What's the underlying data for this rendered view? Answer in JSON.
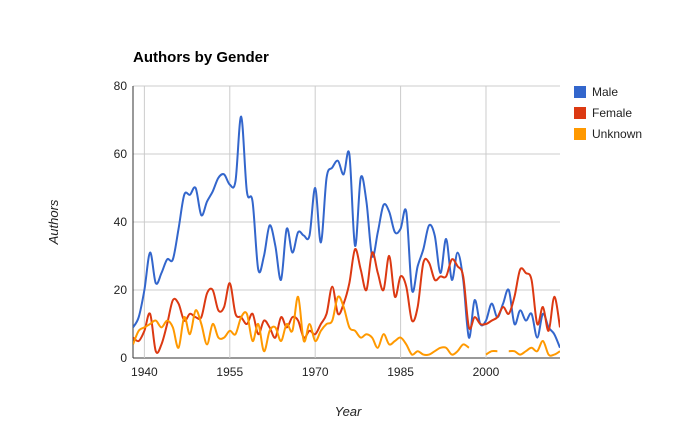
{
  "chart_data": {
    "type": "line",
    "title": "Authors by Gender",
    "xlabel": "Year",
    "ylabel": "Authors",
    "xlim": [
      1938,
      2013
    ],
    "ylim": [
      0,
      80
    ],
    "x_ticks": [
      1940,
      1955,
      1970,
      1985,
      2000
    ],
    "y_ticks": [
      0,
      20,
      40,
      60,
      80
    ],
    "grid": "vertical lines at x ticks",
    "legend_position": "right",
    "series": [
      {
        "name": "Male",
        "color": "#3366cc",
        "points": [
          [
            1938,
            9
          ],
          [
            1939,
            12
          ],
          [
            1940,
            20
          ],
          [
            1941,
            31
          ],
          [
            1942,
            22
          ],
          [
            1943,
            25
          ],
          [
            1944,
            29
          ],
          [
            1945,
            29
          ],
          [
            1946,
            38
          ],
          [
            1947,
            48
          ],
          [
            1948,
            48
          ],
          [
            1949,
            50
          ],
          [
            1950,
            42
          ],
          [
            1951,
            46
          ],
          [
            1952,
            49
          ],
          [
            1953,
            53
          ],
          [
            1954,
            54
          ],
          [
            1955,
            51
          ],
          [
            1956,
            52
          ],
          [
            1957,
            71
          ],
          [
            1958,
            49
          ],
          [
            1959,
            46
          ],
          [
            1960,
            26
          ],
          [
            1961,
            30
          ],
          [
            1962,
            39
          ],
          [
            1963,
            33
          ],
          [
            1964,
            23
          ],
          [
            1965,
            38
          ],
          [
            1966,
            31
          ],
          [
            1967,
            37
          ],
          [
            1968,
            36
          ],
          [
            1969,
            36
          ],
          [
            1970,
            50
          ],
          [
            1971,
            34
          ],
          [
            1972,
            53
          ],
          [
            1973,
            56
          ],
          [
            1974,
            58
          ],
          [
            1975,
            54
          ],
          [
            1976,
            60
          ],
          [
            1977,
            33
          ],
          [
            1978,
            53
          ],
          [
            1979,
            46
          ],
          [
            1980,
            30
          ],
          [
            1981,
            37
          ],
          [
            1982,
            45
          ],
          [
            1983,
            43
          ],
          [
            1984,
            37
          ],
          [
            1985,
            38
          ],
          [
            1986,
            43
          ],
          [
            1987,
            20
          ],
          [
            1988,
            27
          ],
          [
            1989,
            32
          ],
          [
            1990,
            39
          ],
          [
            1991,
            36
          ],
          [
            1992,
            25
          ],
          [
            1993,
            35
          ],
          [
            1994,
            23
          ],
          [
            1995,
            31
          ],
          [
            1996,
            23
          ],
          [
            1997,
            6
          ],
          [
            1998,
            17
          ],
          [
            1999,
            10
          ],
          [
            2000,
            11
          ],
          [
            2001,
            16
          ],
          [
            2002,
            12
          ],
          [
            2003,
            16
          ],
          [
            2004,
            20
          ],
          [
            2005,
            10
          ],
          [
            2006,
            14
          ],
          [
            2007,
            11
          ],
          [
            2008,
            13
          ],
          [
            2009,
            6
          ],
          [
            2010,
            13
          ],
          [
            2011,
            9
          ],
          [
            2012,
            7
          ],
          [
            2013,
            3
          ]
        ]
      },
      {
        "name": "Female",
        "color": "#dc3912",
        "points": [
          [
            1938,
            6
          ],
          [
            1939,
            5
          ],
          [
            1940,
            8
          ],
          [
            1941,
            13
          ],
          [
            1942,
            2
          ],
          [
            1943,
            4
          ],
          [
            1944,
            10
          ],
          [
            1945,
            17
          ],
          [
            1946,
            16
          ],
          [
            1947,
            11
          ],
          [
            1948,
            13
          ],
          [
            1949,
            12
          ],
          [
            1950,
            12
          ],
          [
            1951,
            19
          ],
          [
            1952,
            20
          ],
          [
            1953,
            14
          ],
          [
            1954,
            15
          ],
          [
            1955,
            22
          ],
          [
            1956,
            13
          ],
          [
            1957,
            12
          ],
          [
            1958,
            10
          ],
          [
            1959,
            13
          ],
          [
            1960,
            7
          ],
          [
            1961,
            11
          ],
          [
            1962,
            9
          ],
          [
            1963,
            6
          ],
          [
            1964,
            12
          ],
          [
            1965,
            9
          ],
          [
            1966,
            12
          ],
          [
            1967,
            11
          ],
          [
            1968,
            6
          ],
          [
            1969,
            8
          ],
          [
            1970,
            7
          ],
          [
            1971,
            10
          ],
          [
            1972,
            13
          ],
          [
            1973,
            21
          ],
          [
            1974,
            13
          ],
          [
            1975,
            16
          ],
          [
            1976,
            22
          ],
          [
            1977,
            32
          ],
          [
            1978,
            26
          ],
          [
            1979,
            20
          ],
          [
            1980,
            31
          ],
          [
            1981,
            25
          ],
          [
            1982,
            20
          ],
          [
            1983,
            30
          ],
          [
            1984,
            18
          ],
          [
            1985,
            24
          ],
          [
            1986,
            21
          ],
          [
            1987,
            11
          ],
          [
            1988,
            15
          ],
          [
            1989,
            28
          ],
          [
            1990,
            28
          ],
          [
            1991,
            23
          ],
          [
            1992,
            24
          ],
          [
            1993,
            24
          ],
          [
            1994,
            29
          ],
          [
            1995,
            27
          ],
          [
            1996,
            24
          ],
          [
            1997,
            9
          ],
          [
            1998,
            12
          ],
          [
            1999,
            10
          ],
          [
            2000,
            10
          ],
          [
            2001,
            11
          ],
          [
            2002,
            12
          ],
          [
            2003,
            15
          ],
          [
            2004,
            13
          ],
          [
            2005,
            18
          ],
          [
            2006,
            26
          ],
          [
            2007,
            25
          ],
          [
            2008,
            23
          ],
          [
            2009,
            10
          ],
          [
            2010,
            15
          ],
          [
            2011,
            8
          ],
          [
            2012,
            18
          ],
          [
            2013,
            9
          ]
        ]
      },
      {
        "name": "Unknown",
        "color": "#ff9900",
        "segments": [
          [
            [
              1938,
              4
            ],
            [
              1939,
              8
            ],
            [
              1940,
              9
            ],
            [
              1941,
              10
            ],
            [
              1942,
              11
            ],
            [
              1943,
              9
            ],
            [
              1944,
              11
            ],
            [
              1945,
              9
            ],
            [
              1946,
              3
            ],
            [
              1947,
              12
            ],
            [
              1948,
              7
            ],
            [
              1949,
              14
            ],
            [
              1950,
              10
            ],
            [
              1951,
              4
            ],
            [
              1952,
              10
            ],
            [
              1953,
              6
            ],
            [
              1954,
              6
            ],
            [
              1955,
              8
            ],
            [
              1956,
              7
            ],
            [
              1957,
              12
            ],
            [
              1958,
              13
            ],
            [
              1959,
              5
            ],
            [
              1960,
              10
            ],
            [
              1961,
              2
            ],
            [
              1962,
              8
            ],
            [
              1963,
              9
            ],
            [
              1964,
              5
            ],
            [
              1965,
              10
            ],
            [
              1966,
              8
            ],
            [
              1967,
              18
            ],
            [
              1968,
              5
            ],
            [
              1969,
              10
            ],
            [
              1970,
              5
            ],
            [
              1971,
              8
            ],
            [
              1972,
              10
            ],
            [
              1973,
              11
            ],
            [
              1974,
              18
            ],
            [
              1975,
              15
            ],
            [
              1976,
              9
            ],
            [
              1977,
              8
            ],
            [
              1978,
              6
            ],
            [
              1979,
              7
            ],
            [
              1980,
              6
            ],
            [
              1981,
              3
            ],
            [
              1982,
              7
            ],
            [
              1983,
              4
            ],
            [
              1984,
              5
            ],
            [
              1985,
              6
            ],
            [
              1986,
              4
            ],
            [
              1987,
              1
            ],
            [
              1988,
              2
            ],
            [
              1989,
              1
            ],
            [
              1990,
              1
            ],
            [
              1991,
              2
            ],
            [
              1992,
              3
            ],
            [
              1993,
              3
            ],
            [
              1994,
              1
            ],
            [
              1995,
              2
            ],
            [
              1996,
              4
            ],
            [
              1997,
              3
            ]
          ],
          [
            [
              2000,
              1
            ],
            [
              2001,
              2
            ],
            [
              2002,
              2
            ]
          ],
          [
            [
              2004,
              2
            ],
            [
              2005,
              2
            ],
            [
              2006,
              1
            ],
            [
              2007,
              2
            ],
            [
              2008,
              3
            ],
            [
              2009,
              2
            ],
            [
              2010,
              5
            ],
            [
              2011,
              1
            ],
            [
              2012,
              1
            ],
            [
              2013,
              2
            ]
          ]
        ]
      }
    ]
  }
}
